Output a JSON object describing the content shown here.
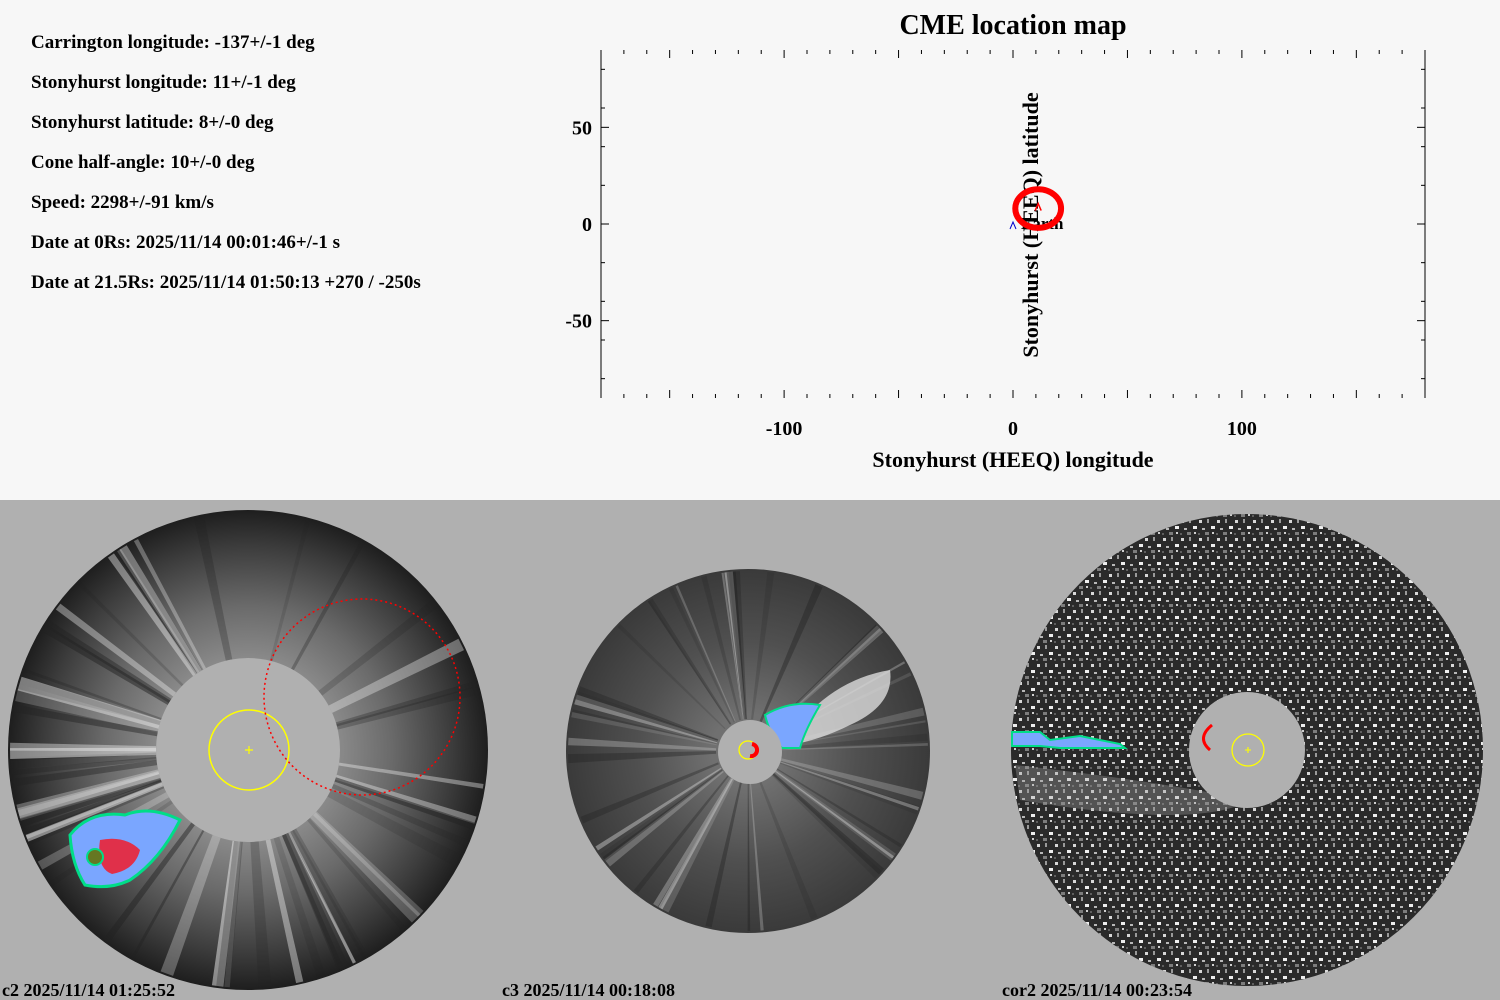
{
  "params": {
    "carrington_longitude": "Carrington longitude: -137+/-1 deg",
    "stonyhurst_longitude": "Stonyhurst longitude: 11+/-1 deg",
    "stonyhurst_latitude": "Stonyhurst latitude: 8+/-0 deg",
    "cone_half_angle": "Cone half-angle: 10+/-0 deg",
    "speed": "Speed: 2298+/-91 km/s",
    "date_0rs": "Date at 0Rs: 2025/11/14 00:01:46+/-1 s",
    "date_215rs": "Date at 21.5Rs: 2025/11/14 01:50:13 +270 / -250s"
  },
  "chart_data": {
    "type": "scatter",
    "title": "CME location map",
    "xlabel": "Stonyhurst (HEEQ) longitude",
    "ylabel": "Stonyhurst (HEEQ) latitude",
    "xlim": [
      -180,
      180
    ],
    "ylim": [
      -90,
      90
    ],
    "x_ticks": [
      -100,
      0,
      100
    ],
    "x_tick_labels": [
      "-100",
      "0",
      "100"
    ],
    "y_ticks": [
      -50,
      0,
      50
    ],
    "y_tick_labels": [
      "-50",
      "0",
      "50"
    ],
    "earth": {
      "label": "Earth",
      "lon": 0,
      "lat": 0,
      "color": "#0000cc"
    },
    "cme": {
      "lon": 11,
      "lat": 8,
      "half_angle": 10,
      "color": "#ff0000"
    }
  },
  "panels": [
    {
      "caption": "c2 2025/11/14 01:25:52"
    },
    {
      "caption": "c3 2025/11/14 00:18:08"
    },
    {
      "caption": "cor2 2025/11/14 00:23:54"
    }
  ],
  "colors": {
    "sun_circle": "#ffff00",
    "cme_outline": "#ff0000",
    "occulter": "#b0b0b0"
  }
}
